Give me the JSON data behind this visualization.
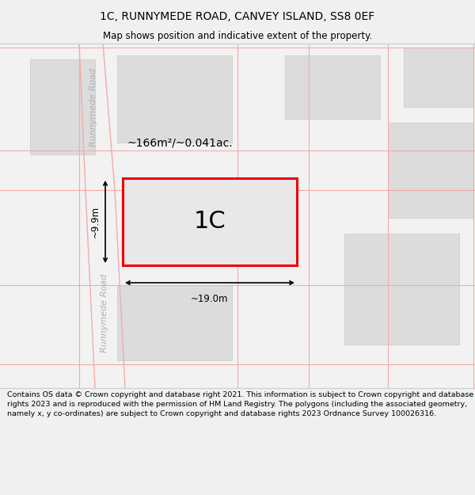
{
  "title": "1C, RUNNYMEDE ROAD, CANVEY ISLAND, SS8 0EF",
  "subtitle": "Map shows position and indicative extent of the property.",
  "footer": "Contains OS data © Crown copyright and database right 2021. This information is subject to Crown copyright and database rights 2023 and is reproduced with the permission of HM Land Registry. The polygons (including the associated geometry, namely x, y co-ordinates) are subject to Crown copyright and database rights 2023 Ordnance Survey 100026316.",
  "area_label": "~166m²/~0.041ac.",
  "plot_label": "1C",
  "width_label": "~19.0m",
  "height_label": "~9.9m",
  "road_label_top": "Runnymede Road",
  "road_label_bottom": "Runnymede Road",
  "bg_color": "#f0f0f0",
  "map_bg": "#ffffff",
  "plot_fill": "#e8e8e8",
  "plot_border": "#ee0000",
  "other_fill": "#dcdcdc",
  "road_line_color": "#f4aaaa",
  "grid_line_color": "#f4aaaa",
  "title_fontsize": 10,
  "subtitle_fontsize": 8.5,
  "footer_fontsize": 6.8,
  "label_fontsize": 10,
  "plot_label_fontsize": 22,
  "measure_fontsize": 8.5,
  "road_fontsize": 8
}
